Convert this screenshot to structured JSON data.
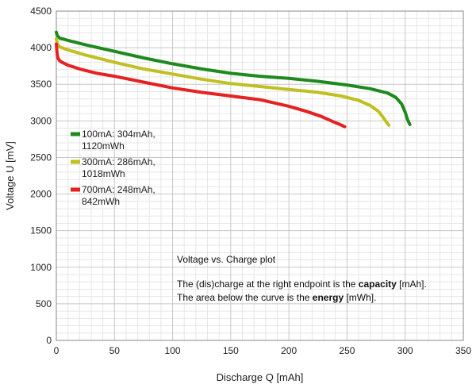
{
  "chart_data": {
    "type": "line",
    "title": "",
    "xlabel": "Discharge Q [mAh]",
    "ylabel": "Voltage U [mV]",
    "xlim": [
      0,
      350
    ],
    "ylim": [
      0,
      4500
    ],
    "x_ticks": [
      0,
      50,
      100,
      150,
      200,
      250,
      300,
      350
    ],
    "y_ticks": [
      0,
      500,
      1000,
      1500,
      2000,
      2500,
      3000,
      3500,
      4000,
      4500
    ],
    "grid": true,
    "legend_position": "left",
    "series": [
      {
        "name": "100mA",
        "legend_line1": "100mA: 304mAh,",
        "legend_line2": "1120mWh",
        "color": "#1e8a1e",
        "x": [
          0,
          0.5,
          1,
          3,
          10,
          25,
          50,
          75,
          100,
          125,
          150,
          175,
          200,
          225,
          250,
          270,
          285,
          292,
          297,
          300,
          302,
          304
        ],
        "y": [
          4210,
          4180,
          4160,
          4130,
          4100,
          4040,
          3950,
          3860,
          3780,
          3710,
          3650,
          3610,
          3580,
          3540,
          3490,
          3440,
          3380,
          3320,
          3230,
          3120,
          3020,
          2950
        ]
      },
      {
        "name": "300mA",
        "legend_line1": "300mA: 286mAh,",
        "legend_line2": "1018mWh",
        "color": "#c0c022",
        "x": [
          0,
          0.5,
          1,
          3,
          10,
          25,
          50,
          75,
          100,
          125,
          150,
          175,
          200,
          225,
          245,
          260,
          270,
          277,
          281,
          284,
          286
        ],
        "y": [
          4120,
          4080,
          4050,
          4010,
          3970,
          3900,
          3800,
          3710,
          3640,
          3570,
          3510,
          3470,
          3430,
          3390,
          3340,
          3280,
          3210,
          3130,
          3050,
          2980,
          2940
        ]
      },
      {
        "name": "700mA",
        "legend_line1": "700mA: 248mAh,",
        "legend_line2": "842mWh",
        "color": "#e52121",
        "x": [
          0,
          0.5,
          1,
          2,
          3,
          5,
          10,
          20,
          35,
          50,
          75,
          100,
          125,
          150,
          175,
          200,
          215,
          228,
          238,
          244,
          248
        ],
        "y": [
          4050,
          3950,
          3880,
          3840,
          3820,
          3800,
          3760,
          3710,
          3650,
          3610,
          3530,
          3450,
          3390,
          3340,
          3290,
          3200,
          3130,
          3060,
          2990,
          2950,
          2920
        ]
      }
    ],
    "annotation": {
      "title": "Voltage vs. Charge plot",
      "line1_pre": "The (dis)charge at the right endpoint is the ",
      "line1_bold": "capacity",
      "line1_post": " [mAh].",
      "line2_pre": "The area below the curve is the ",
      "line2_bold": "energy",
      "line2_post": " [mWh]."
    }
  }
}
